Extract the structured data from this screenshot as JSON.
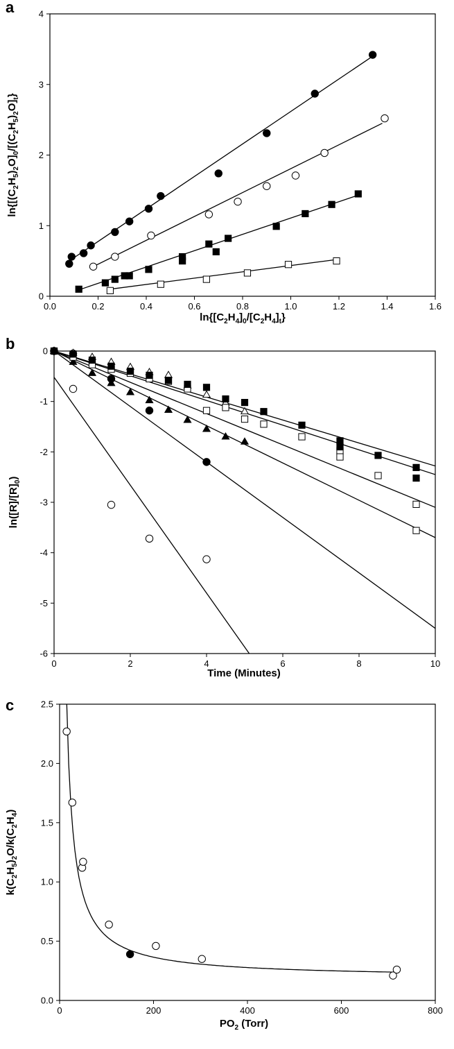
{
  "chart_data": [
    {
      "panel": "a",
      "type": "scatter",
      "xlabel": [
        "ln{[C",
        "2",
        "H",
        "4",
        "]",
        "0",
        "/[C",
        "2",
        "H",
        "4",
        "]",
        "t",
        "}"
      ],
      "ylabel": [
        "ln{[(C",
        "2",
        "H",
        "5",
        ")",
        "2",
        "O]",
        "0",
        "/[(C",
        "2",
        "H",
        "5",
        ")",
        "2",
        "O]",
        "t",
        "}"
      ],
      "xlim": [
        0,
        1.6
      ],
      "ylim": [
        0,
        4
      ],
      "xticks": [
        "0.0",
        "0.2",
        "0.4",
        "0.6",
        "0.8",
        "1.0",
        "1.2",
        "1.4",
        "1.6"
      ],
      "yticks": [
        "0",
        "1",
        "2",
        "3",
        "4"
      ],
      "series": [
        {
          "marker": "filled-circle",
          "fit": [
            [
              0.08,
              0.5
            ],
            [
              1.34,
              3.4
            ]
          ],
          "x": [
            0.08,
            0.09,
            0.14,
            0.17,
            0.27,
            0.33,
            0.41,
            0.46,
            0.7,
            0.9,
            1.1,
            1.34
          ],
          "y": [
            0.46,
            0.56,
            0.61,
            0.72,
            0.91,
            1.06,
            1.24,
            1.42,
            1.74,
            2.31,
            2.87,
            3.42
          ]
        },
        {
          "marker": "open-circle",
          "fit": [
            [
              0.18,
              0.42
            ],
            [
              1.38,
              2.45
            ]
          ],
          "x": [
            0.18,
            0.27,
            0.42,
            0.66,
            0.78,
            0.9,
            1.02,
            1.14,
            1.39
          ],
          "y": [
            0.42,
            0.56,
            0.86,
            1.16,
            1.34,
            1.56,
            1.71,
            2.03,
            2.52
          ]
        },
        {
          "marker": "filled-square",
          "fit": [
            [
              0.12,
              0.09
            ],
            [
              1.27,
              1.42
            ]
          ],
          "x": [
            0.12,
            0.23,
            0.27,
            0.31,
            0.33,
            0.41,
            0.55,
            0.55,
            0.66,
            0.69,
            0.74,
            0.94,
            1.06,
            1.17,
            1.28
          ],
          "y": [
            0.1,
            0.19,
            0.24,
            0.29,
            0.29,
            0.38,
            0.5,
            0.56,
            0.74,
            0.63,
            0.82,
            0.99,
            1.17,
            1.3,
            1.45
          ]
        },
        {
          "marker": "open-square",
          "fit": [
            [
              0.25,
              0.1
            ],
            [
              1.19,
              0.52
            ]
          ],
          "x": [
            0.25,
            0.46,
            0.65,
            0.82,
            0.99,
            1.19
          ],
          "y": [
            0.08,
            0.17,
            0.24,
            0.33,
            0.45,
            0.5
          ]
        }
      ]
    },
    {
      "panel": "b",
      "type": "scatter",
      "xlabel": "Time (Minutes)",
      "ylabel": "ln([R]/[R]0)",
      "xlim": [
        0,
        10
      ],
      "ylim": [
        -6,
        0
      ],
      "xticks": [
        "0",
        "2",
        "4",
        "6",
        "8",
        "10"
      ],
      "yticks": [
        "0",
        "-1",
        "-2",
        "-3",
        "-4",
        "-5",
        "-6"
      ],
      "lines": [
        {
          "from": [
            0,
            -0.52
          ],
          "to": [
            5.12,
            -6
          ]
        },
        {
          "from": [
            0,
            0
          ],
          "to": [
            10,
            -5.5
          ]
        },
        {
          "from": [
            0,
            0
          ],
          "to": [
            10,
            -3.7
          ]
        },
        {
          "from": [
            0,
            0
          ],
          "to": [
            10,
            -3.1
          ]
        },
        {
          "from": [
            0,
            0
          ],
          "to": [
            10,
            -2.45
          ]
        },
        {
          "from": [
            0,
            0
          ],
          "to": [
            10,
            -2.28
          ]
        }
      ],
      "series": [
        {
          "marker": "open-circle",
          "x": [
            0,
            0.5,
            1.5,
            2.5,
            4.0
          ],
          "y": [
            0,
            -0.75,
            -3.05,
            -3.72,
            -4.13
          ]
        },
        {
          "marker": "filled-circle",
          "x": [
            0,
            0.5,
            1.5,
            2.5,
            4.0
          ],
          "y": [
            0,
            -0.05,
            -0.55,
            -1.18,
            -2.2
          ]
        },
        {
          "marker": "filled-triangle",
          "x": [
            0,
            0.5,
            1.0,
            1.5,
            2.0,
            2.5,
            3.0,
            3.5,
            4.0,
            4.5,
            5.0
          ],
          "y": [
            0,
            -0.22,
            -0.44,
            -0.64,
            -0.82,
            -0.98,
            -1.17,
            -1.37,
            -1.55,
            -1.7,
            -1.8
          ]
        },
        {
          "marker": "open-triangle",
          "x": [
            0,
            0.5,
            1.0,
            1.5,
            2.0,
            2.5,
            3.0,
            3.5,
            4.0,
            4.5,
            5.0
          ],
          "y": [
            0,
            -0.04,
            -0.12,
            -0.22,
            -0.32,
            -0.42,
            -0.48,
            -0.69,
            -0.87,
            -1.03,
            -1.2
          ]
        },
        {
          "marker": "open-square",
          "x": [
            0,
            0.5,
            1.0,
            1.5,
            2.0,
            2.5,
            3.0,
            3.5,
            4.0,
            4.5,
            5.0,
            5.5,
            6.5,
            7.5,
            7.5,
            8.5,
            9.5,
            9.5
          ],
          "y": [
            0,
            -0.12,
            -0.27,
            -0.36,
            -0.44,
            -0.55,
            -0.6,
            -0.75,
            -1.18,
            -1.12,
            -1.35,
            -1.45,
            -1.7,
            -1.98,
            -2.1,
            -2.47,
            -3.04,
            -3.56
          ]
        },
        {
          "marker": "filled-square",
          "x": [
            0,
            0.5,
            1.0,
            1.5,
            2.0,
            2.5,
            3.0,
            3.5,
            4.0,
            4.5,
            5.0,
            5.5,
            6.5,
            7.5,
            7.5,
            8.5,
            9.5,
            9.5
          ],
          "y": [
            0,
            -0.06,
            -0.18,
            -0.3,
            -0.4,
            -0.48,
            -0.58,
            -0.66,
            -0.72,
            -0.95,
            -1.02,
            -1.2,
            -1.47,
            -1.78,
            -1.9,
            -2.07,
            -2.31,
            -2.52
          ]
        }
      ]
    },
    {
      "panel": "c",
      "type": "scatter",
      "xlabel": [
        "P",
        "O",
        "2",
        " (Torr)"
      ],
      "ylabel": [
        "k",
        "(C",
        "2",
        "H",
        "5",
        ")",
        "2",
        "O",
        "/k",
        "(C",
        "2",
        "H",
        "4",
        ")"
      ],
      "xlim": [
        0,
        800
      ],
      "ylim": [
        0,
        2.5
      ],
      "xticks": [
        "0",
        "200",
        "400",
        "600",
        "800"
      ],
      "yticks": [
        "0.0",
        "0.5",
        "1.0",
        "1.5",
        "2.0",
        "2.5"
      ],
      "curve": {
        "form": "a + b / (x - c)",
        "a": 0.19,
        "b": 35,
        "c": 0,
        "x_range": [
          15,
          715
        ]
      },
      "series": [
        {
          "marker": "open-circle",
          "x": [
            15,
            27,
            48,
            50,
            105,
            205,
            303,
            710,
            718
          ],
          "y": [
            2.27,
            1.67,
            1.12,
            1.17,
            0.64,
            0.46,
            0.35,
            0.21,
            0.26
          ]
        },
        {
          "marker": "filled-circle",
          "x": [
            150
          ],
          "y": [
            0.39
          ]
        }
      ]
    }
  ]
}
